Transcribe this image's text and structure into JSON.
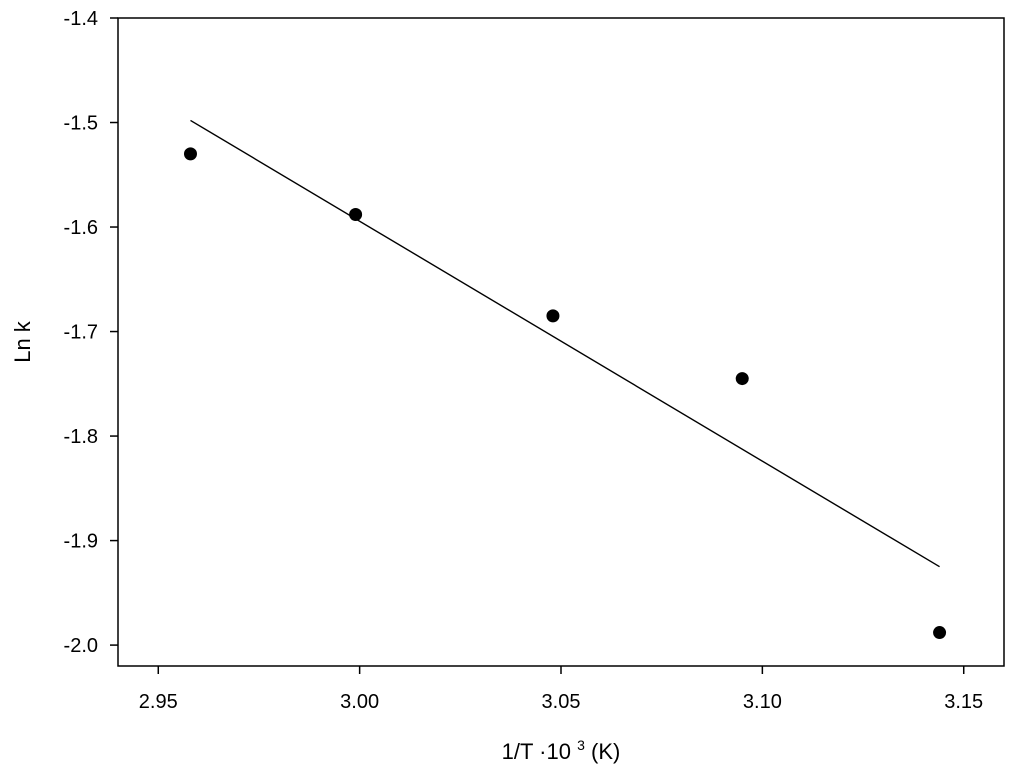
{
  "chart_data": {
    "type": "scatter",
    "title": "",
    "xlabel": {
      "base": "1/T ·10",
      "superscript": "3",
      "unit": "(K)"
    },
    "ylabel": "Ln k",
    "xlim": [
      2.94,
      3.16
    ],
    "ylim": [
      -2.02,
      -1.4
    ],
    "xticks": [
      2.95,
      3.0,
      3.05,
      3.1,
      3.15
    ],
    "xtick_labels": [
      "2.95",
      "3.00",
      "3.05",
      "3.10",
      "3.15"
    ],
    "yticks": [
      -1.4,
      -1.5,
      -1.6,
      -1.7,
      -1.8,
      -1.9,
      -2.0
    ],
    "ytick_labels": [
      "-1.4",
      "-1.5",
      "-1.6",
      "-1.7",
      "-1.8",
      "-1.9",
      "-2.0"
    ],
    "grid": false,
    "series": [
      {
        "kind": "points",
        "color": "#000000",
        "x": [
          2.958,
          2.999,
          3.048,
          3.095,
          3.144
        ],
        "y": [
          -1.53,
          -1.588,
          -1.685,
          -1.745,
          -1.988
        ]
      },
      {
        "kind": "fit-line",
        "color": "#000000",
        "x": [
          2.958,
          3.144
        ],
        "y": [
          -1.498,
          -1.925
        ]
      }
    ]
  }
}
